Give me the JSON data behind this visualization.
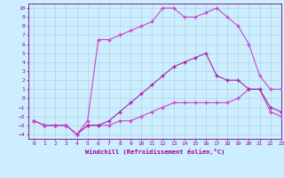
{
  "xlabel": "Windchill (Refroidissement éolien,°C)",
  "xlim": [
    -0.5,
    23
  ],
  "ylim": [
    -4.5,
    10.5
  ],
  "xticks": [
    0,
    1,
    2,
    3,
    4,
    5,
    6,
    7,
    8,
    9,
    10,
    11,
    12,
    13,
    14,
    15,
    16,
    17,
    18,
    19,
    20,
    21,
    22,
    23
  ],
  "yticks": [
    -4,
    -3,
    -2,
    -1,
    0,
    1,
    2,
    3,
    4,
    5,
    6,
    7,
    8,
    9,
    10
  ],
  "bg_color": "#cceeff",
  "grid_color": "#aaccdd",
  "curve_top_color": "#cc44cc",
  "curve_mid_color": "#aa22aa",
  "curve_bot_color": "#cc44cc",
  "curve_top_x": [
    0,
    1,
    2,
    3,
    4,
    5,
    6,
    7,
    8,
    9,
    10,
    11,
    12,
    13,
    14,
    15,
    16,
    17,
    18,
    19,
    20,
    21,
    22,
    23
  ],
  "curve_top_y": [
    -2.5,
    -3,
    -3,
    -3,
    -4,
    -2.5,
    6.5,
    6.5,
    7,
    7.5,
    8,
    8.5,
    10,
    10,
    9,
    9,
    9.5,
    10,
    9,
    8,
    6,
    2.5,
    1,
    1
  ],
  "curve_mid_x": [
    0,
    1,
    2,
    3,
    4,
    5,
    6,
    7,
    8,
    9,
    10,
    11,
    12,
    13,
    14,
    15,
    16,
    17,
    18,
    19,
    20,
    21,
    22,
    23
  ],
  "curve_mid_y": [
    -2.5,
    -3,
    -3,
    -3,
    -4,
    -3,
    -3,
    -2.5,
    -1.5,
    -0.5,
    0.5,
    1.5,
    2.5,
    3.5,
    4,
    4.5,
    5,
    2.5,
    2,
    2,
    1,
    1,
    -1,
    -1.5
  ],
  "curve_bot_x": [
    0,
    1,
    2,
    3,
    4,
    5,
    6,
    7,
    8,
    9,
    10,
    11,
    12,
    13,
    14,
    15,
    16,
    17,
    18,
    19,
    20,
    21,
    22,
    23
  ],
  "curve_bot_y": [
    -2.5,
    -3,
    -3,
    -3,
    -4,
    -3,
    -3,
    -3,
    -2.5,
    -2.5,
    -2,
    -1.5,
    -1,
    -0.5,
    -0.5,
    -0.5,
    -0.5,
    -0.5,
    -0.5,
    0,
    1,
    1,
    -1.5,
    -2
  ],
  "marker": "+",
  "markersize": 3,
  "linewidth": 0.8
}
